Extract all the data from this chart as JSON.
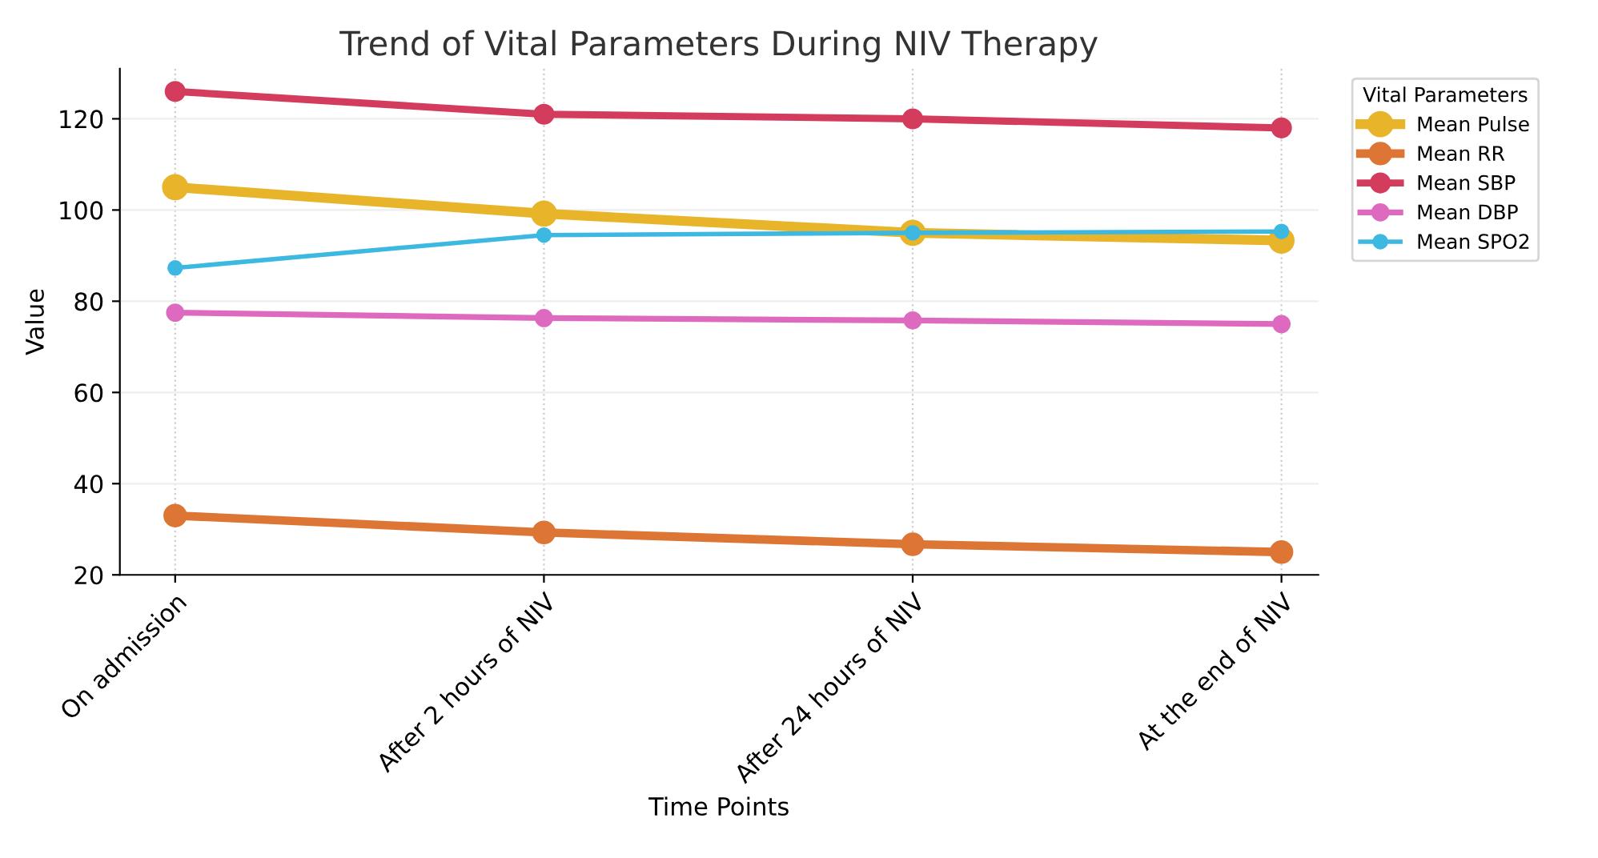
{
  "chart_data": {
    "type": "line",
    "title": "Trend of Vital Parameters During NIV Therapy",
    "xlabel": "Time Points",
    "ylabel": "Value",
    "legend_title": "Vital Parameters",
    "categories": [
      "On admission",
      "After 2 hours of NIV",
      "After 24 hours of NIV",
      "At the end of NIV"
    ],
    "series": [
      {
        "name": "Mean Pulse",
        "color": "#e8b52a",
        "values": [
          105,
          99.2,
          95,
          93.3
        ]
      },
      {
        "name": "Mean RR",
        "color": "#dd7634",
        "values": [
          33,
          29.3,
          26.7,
          25
        ]
      },
      {
        "name": "Mean SBP",
        "color": "#d33c5c",
        "values": [
          126,
          121,
          120,
          118
        ]
      },
      {
        "name": "Mean DBP",
        "color": "#de6ac0",
        "values": [
          77.5,
          76.3,
          75.8,
          75
        ]
      },
      {
        "name": "Mean SPO2",
        "color": "#3db8e0",
        "values": [
          87.3,
          94.5,
          95,
          95.3
        ]
      }
    ],
    "ylim": [
      20,
      131
    ],
    "yticks": [
      20,
      40,
      60,
      80,
      100,
      120
    ],
    "grid": true,
    "legend": "top right",
    "marker": "circle",
    "line_style": "solid"
  }
}
